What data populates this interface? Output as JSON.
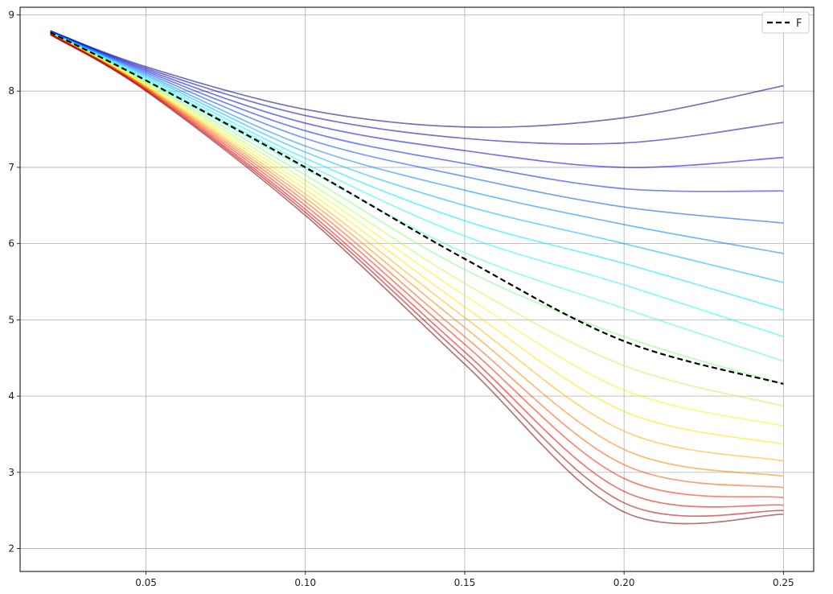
{
  "chart_data": {
    "type": "line",
    "title": "",
    "xlabel": "",
    "ylabel": "",
    "xlim": [
      0.0105,
      0.2595
    ],
    "ylim": [
      1.7,
      9.1
    ],
    "xticks": [
      0.05,
      0.1,
      0.15,
      0.2,
      0.25
    ],
    "xtick_labels": [
      "0.05",
      "0.10",
      "0.15",
      "0.20",
      "0.25"
    ],
    "yticks": [
      2,
      3,
      4,
      5,
      6,
      7,
      8,
      9
    ],
    "ytick_labels": [
      "2",
      "3",
      "4",
      "5",
      "6",
      "7",
      "8",
      "9"
    ],
    "grid": true,
    "legend": {
      "location": "top-right",
      "entries": [
        "F"
      ]
    },
    "colormap": "jet",
    "x": [
      0.02,
      0.05,
      0.1,
      0.15,
      0.2,
      0.25
    ],
    "series": [
      {
        "values": [
          8.79,
          8.32,
          7.76,
          7.53,
          7.65,
          8.07
        ]
      },
      {
        "values": [
          8.79,
          8.3,
          7.68,
          7.38,
          7.32,
          7.59
        ]
      },
      {
        "values": [
          8.79,
          8.28,
          7.58,
          7.22,
          7.0,
          7.13
        ]
      },
      {
        "values": [
          8.78,
          8.26,
          7.48,
          7.05,
          6.72,
          6.69
        ]
      },
      {
        "values": [
          8.78,
          8.24,
          7.38,
          6.88,
          6.48,
          6.27
        ]
      },
      {
        "values": [
          8.78,
          8.22,
          7.28,
          6.7,
          6.25,
          5.87
        ]
      },
      {
        "values": [
          8.77,
          8.2,
          7.2,
          6.5,
          6.0,
          5.49
        ]
      },
      {
        "values": [
          8.77,
          8.18,
          7.12,
          6.3,
          5.74,
          5.13
        ]
      },
      {
        "values": [
          8.77,
          8.16,
          7.05,
          6.1,
          5.46,
          4.78
        ]
      },
      {
        "values": [
          8.77,
          8.14,
          6.98,
          5.88,
          5.15,
          4.46
        ]
      },
      {
        "values": [
          8.76,
          8.12,
          6.9,
          5.66,
          4.78,
          4.16
        ]
      },
      {
        "values": [
          8.76,
          8.1,
          6.83,
          5.48,
          4.4,
          3.87
        ]
      },
      {
        "values": [
          8.76,
          8.08,
          6.77,
          5.32,
          4.08,
          3.61
        ]
      },
      {
        "values": [
          8.76,
          8.07,
          6.71,
          5.17,
          3.8,
          3.37
        ]
      },
      {
        "values": [
          8.75,
          8.06,
          6.65,
          5.03,
          3.54,
          3.15
        ]
      },
      {
        "values": [
          8.75,
          8.05,
          6.6,
          4.9,
          3.3,
          2.95
        ]
      },
      {
        "values": [
          8.75,
          8.04,
          6.55,
          4.78,
          3.1,
          2.8
        ]
      },
      {
        "values": [
          8.75,
          8.03,
          6.5,
          4.68,
          2.92,
          2.67
        ]
      },
      {
        "values": [
          8.75,
          8.02,
          6.45,
          4.58,
          2.75,
          2.57
        ]
      },
      {
        "values": [
          8.74,
          8.01,
          6.41,
          4.5,
          2.6,
          2.5
        ]
      },
      {
        "values": [
          8.74,
          8.0,
          6.37,
          4.42,
          2.48,
          2.45
        ]
      }
    ],
    "reference_series": {
      "name": "F",
      "style": "dashed",
      "color": "#000000",
      "values": [
        8.77,
        8.14,
        7.0,
        5.8,
        4.72,
        4.16
      ]
    }
  }
}
